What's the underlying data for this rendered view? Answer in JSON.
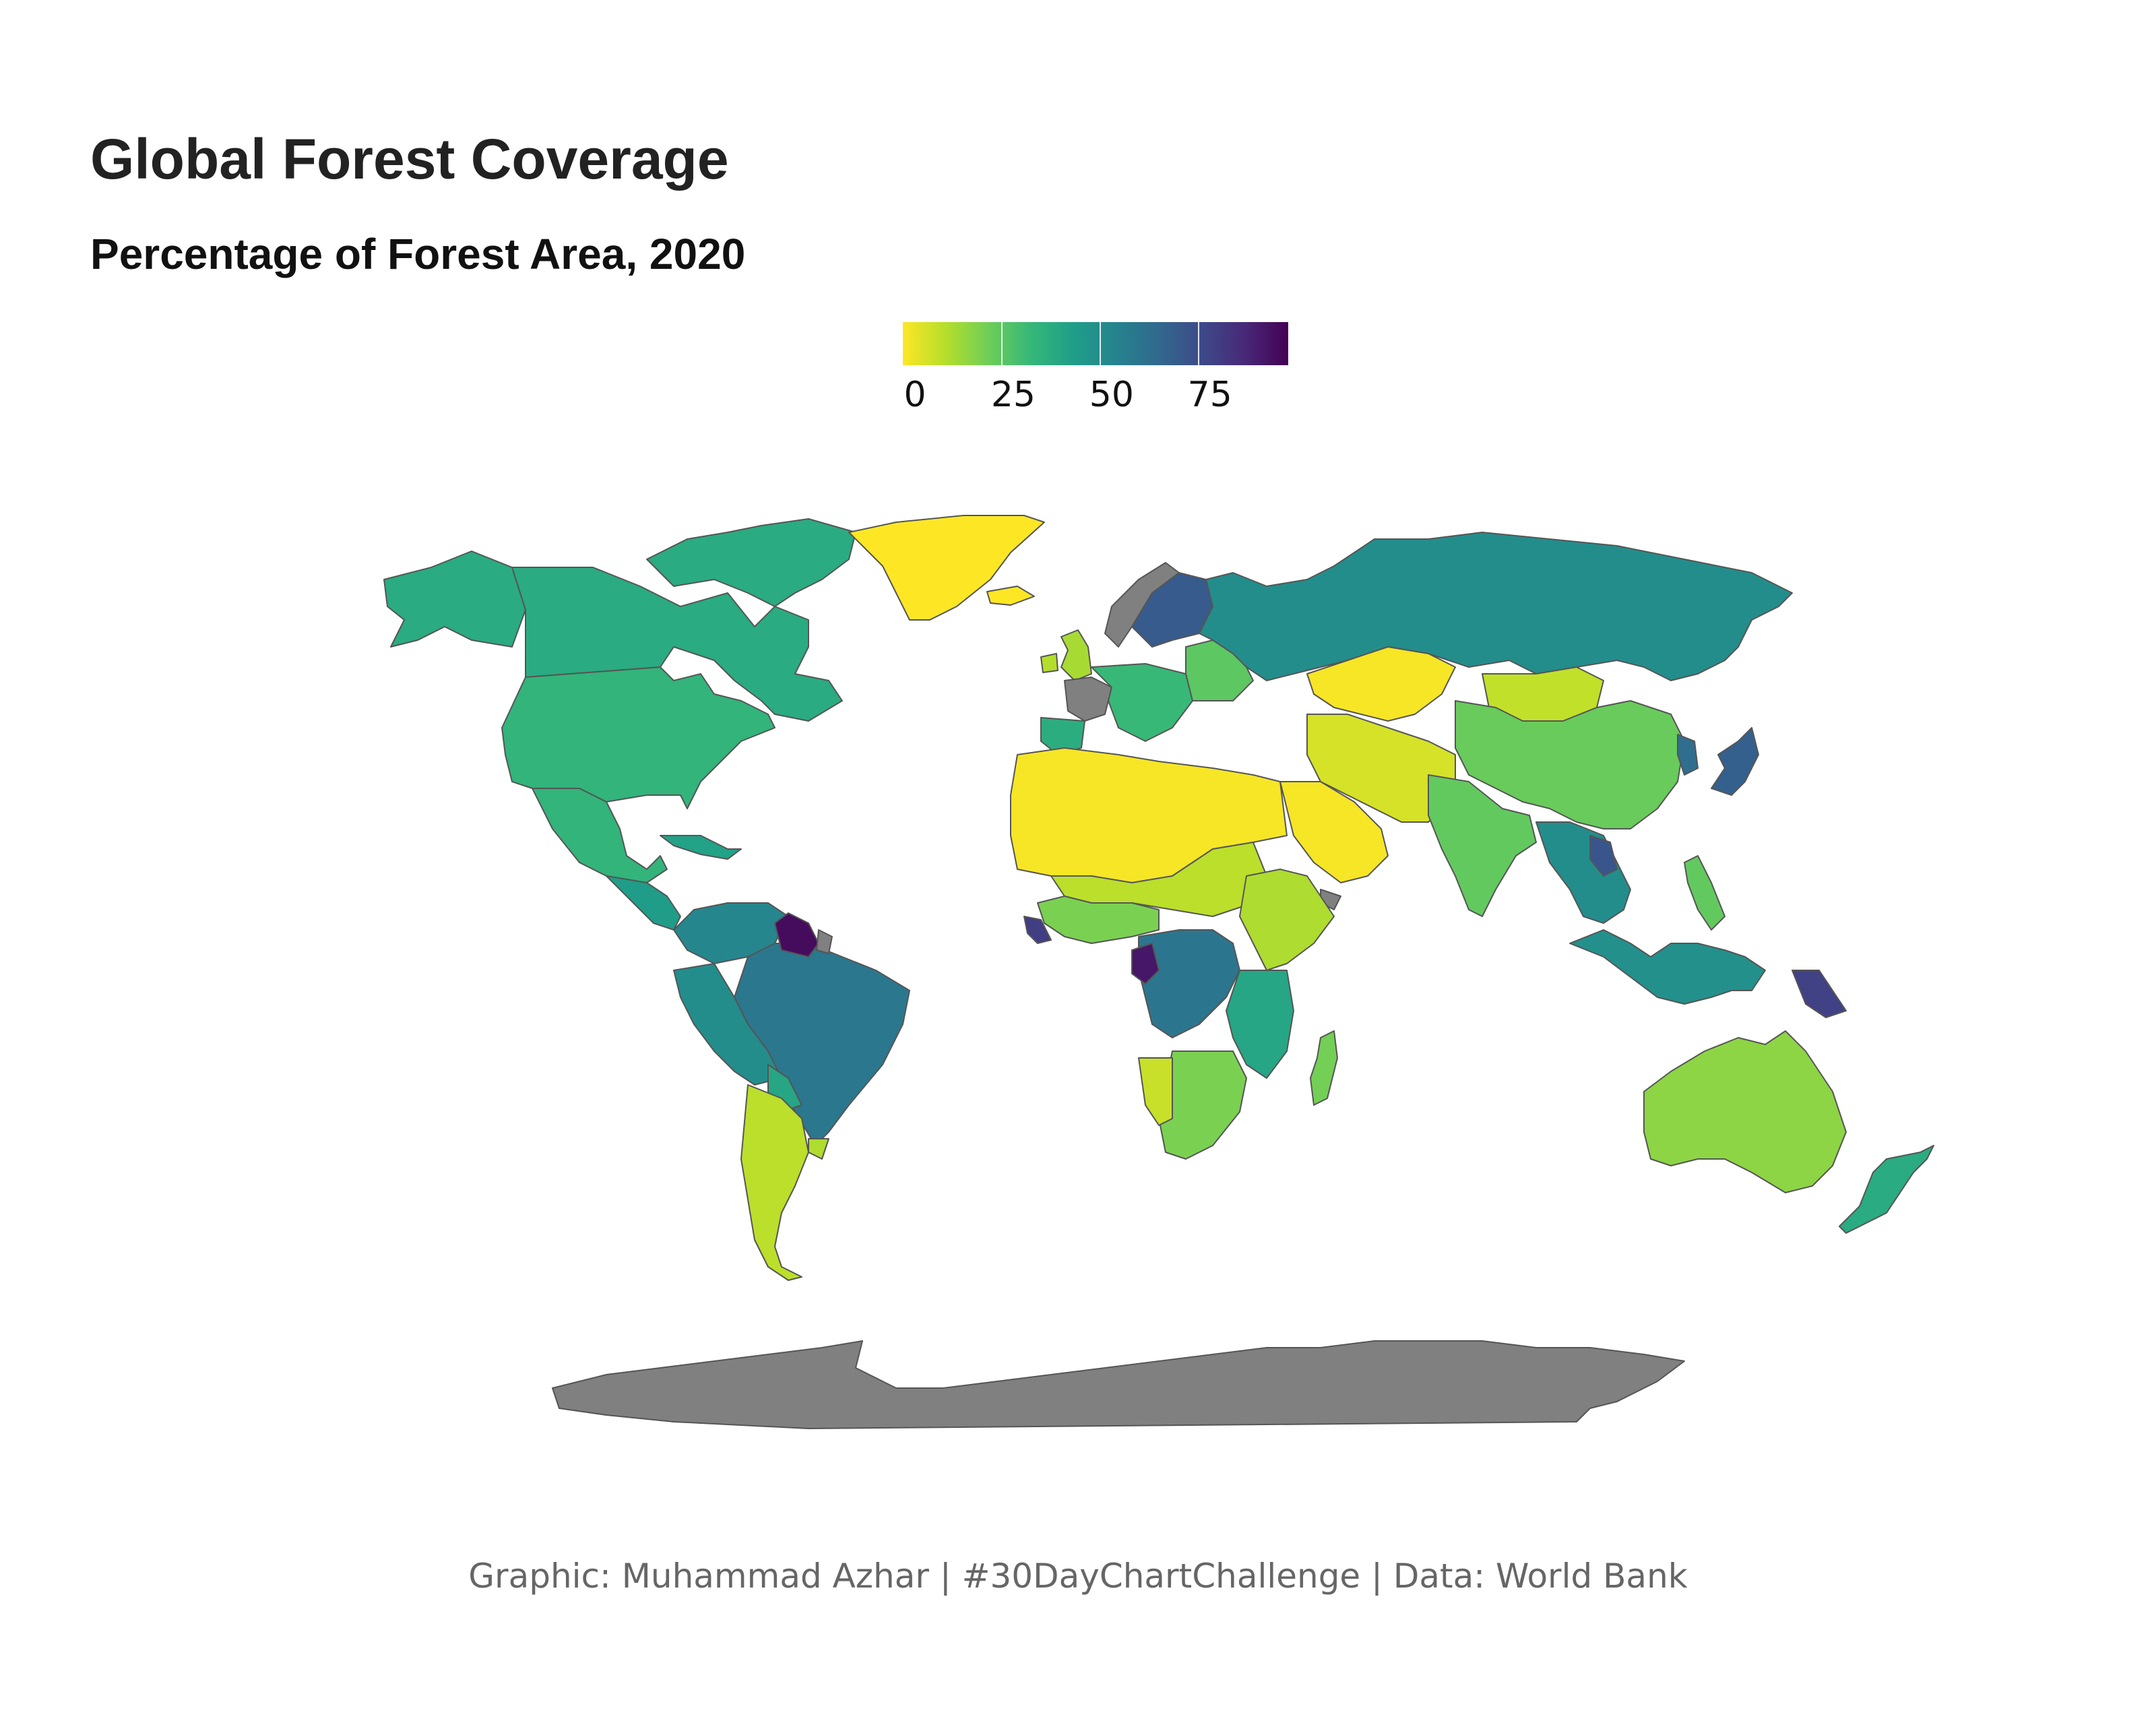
{
  "header": {
    "title": "Global Forest Coverage",
    "subtitle": "Percentage of Forest Area, 2020"
  },
  "legend": {
    "labels": [
      "0",
      "25",
      "50",
      "75"
    ],
    "tick_values": [
      0,
      25,
      50,
      75
    ],
    "range": [
      0,
      98
    ],
    "scale": "viridis (reversed)",
    "palette": [
      "#fde725",
      "#b5de2b",
      "#6ece58",
      "#35b779",
      "#1f9e89",
      "#26828e",
      "#31688e",
      "#3e4989",
      "#482878",
      "#440154"
    ],
    "placement": "top-center"
  },
  "map": {
    "no_data_color": "#808080",
    "border_color": "#555555",
    "regions": [
      {
        "name": "Alaska / Canada north",
        "value": 38
      },
      {
        "name": "Canada",
        "value": 38
      },
      {
        "name": "Canadian Arctic Islands",
        "value": 38
      },
      {
        "name": "Greenland",
        "value": 0
      },
      {
        "name": "United States",
        "value": 34
      },
      {
        "name": "Mexico",
        "value": 34
      },
      {
        "name": "Central America",
        "value": 44
      },
      {
        "name": "Caribbean",
        "value": 42
      },
      {
        "name": "Colombia / Venezuela",
        "value": 53
      },
      {
        "name": "Brazil",
        "value": 59
      },
      {
        "name": "Guyana / Suriname",
        "value": 95
      },
      {
        "name": "French Guiana",
        "value": null
      },
      {
        "name": "Peru / Bolivia",
        "value": 50
      },
      {
        "name": "Paraguay",
        "value": 40
      },
      {
        "name": "Uruguay",
        "value": 12
      },
      {
        "name": "Chile / Argentina",
        "value": 10
      },
      {
        "name": "Iceland",
        "value": 0
      },
      {
        "name": "United Kingdom",
        "value": 13
      },
      {
        "name": "Ireland",
        "value": 11
      },
      {
        "name": "France",
        "value": null
      },
      {
        "name": "Iberia",
        "value": 37
      },
      {
        "name": "Central Europe",
        "value": 32
      },
      {
        "name": "Norway",
        "value": null
      },
      {
        "name": "Sweden / Finland",
        "value": 70
      },
      {
        "name": "Eastern Europe",
        "value": 25
      },
      {
        "name": "Russia",
        "value": 50
      },
      {
        "name": "North Africa",
        "value": 1
      },
      {
        "name": "Sahel",
        "value": 10
      },
      {
        "name": "West Africa",
        "value": 20
      },
      {
        "name": "Liberia / Sierra Leone",
        "value": 80
      },
      {
        "name": "Central Africa",
        "value": 60
      },
      {
        "name": "Gabon",
        "value": 92
      },
      {
        "name": "Somalia",
        "value": null
      },
      {
        "name": "Horn of Africa",
        "value": 12
      },
      {
        "name": "East Africa",
        "value": 40
      },
      {
        "name": "Southern Africa",
        "value": 20
      },
      {
        "name": "Namibia",
        "value": 8
      },
      {
        "name": "Madagascar",
        "value": 21
      },
      {
        "name": "Arabian Peninsula",
        "value": 1
      },
      {
        "name": "Kazakhstan",
        "value": 1
      },
      {
        "name": "Central Asia / Iran",
        "value": 6
      },
      {
        "name": "Mongolia",
        "value": 9
      },
      {
        "name": "China",
        "value": 23
      },
      {
        "name": "India",
        "value": 24
      },
      {
        "name": "Southeast Asia",
        "value": 50
      },
      {
        "name": "Laos",
        "value": 72
      },
      {
        "name": "Indonesia",
        "value": 49
      },
      {
        "name": "Philippines",
        "value": 24
      },
      {
        "name": "Papua New Guinea",
        "value": 79
      },
      {
        "name": "Japan",
        "value": 68
      },
      {
        "name": "Korea",
        "value": 63
      },
      {
        "name": "Australia",
        "value": 17
      },
      {
        "name": "New Zealand",
        "value": 38
      },
      {
        "name": "Antarctica",
        "value": null
      }
    ]
  },
  "footer": {
    "caption": "Graphic: Muhammad Azhar | #30DayChartChallenge | Data: World Bank"
  }
}
